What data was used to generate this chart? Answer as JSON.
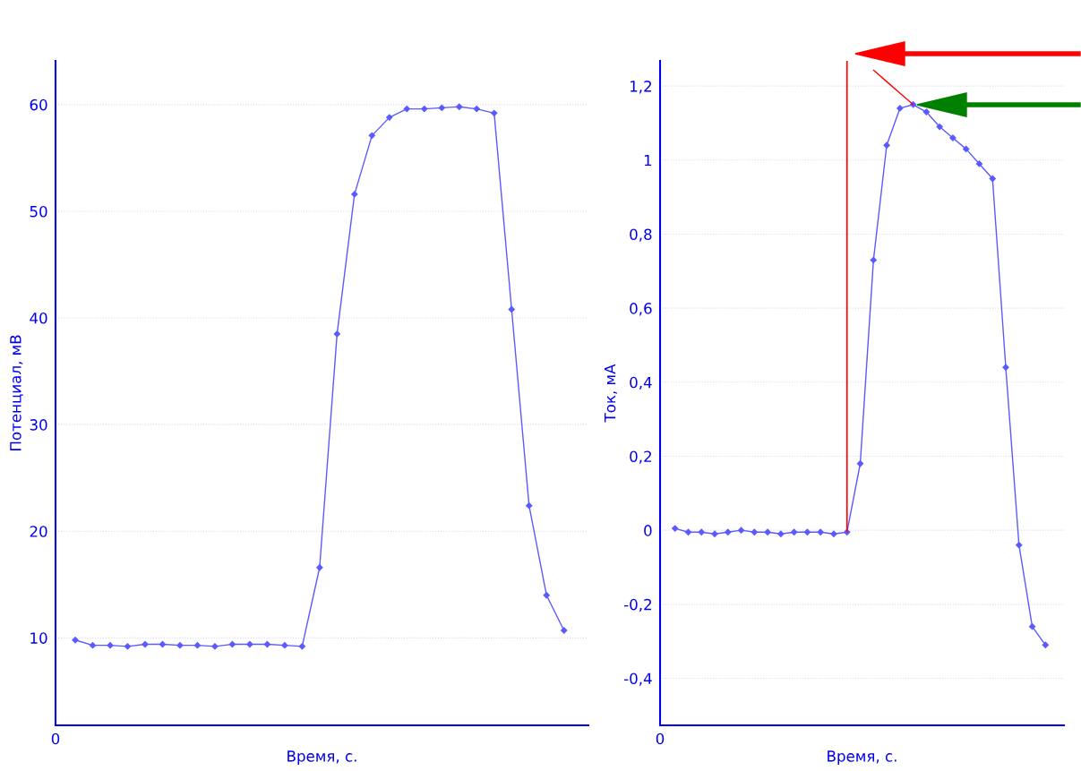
{
  "chart_data": [
    {
      "type": "line",
      "xlabel": "Время, с.",
      "ylabel": "Потенциал, мВ",
      "annotations": [
        "0"
      ],
      "categories": [
        null,
        null,
        null,
        null,
        null,
        null,
        null,
        null,
        null,
        null,
        null,
        null,
        null,
        null,
        null,
        null,
        null,
        null,
        null,
        null,
        null,
        null,
        null,
        null,
        null,
        null,
        null,
        null,
        null
      ],
      "series": [
        {
          "color": "#5a5aff",
          "values": [
            9.8,
            9.3,
            9.3,
            9.2,
            9.4,
            9.4,
            9.3,
            9.3,
            9.2,
            9.4,
            9.4,
            9.4,
            9.3,
            9.2,
            16.6,
            38.5,
            51.6,
            57.1,
            58.8,
            59.6,
            59.6,
            59.7,
            59.8,
            59.6,
            59.2,
            40.8,
            22.4,
            14.0,
            10.7
          ]
        }
      ],
      "ylim": [
        1.8,
        64.1
      ],
      "yticks": [
        10,
        20,
        30,
        40,
        50,
        60
      ],
      "grid": "y",
      "marker": "diamond",
      "line_style": "solid"
    },
    {
      "type": "line",
      "xlabel": "Время, с.",
      "ylabel": "Ток, мА",
      "annotations": [
        "0"
      ],
      "categories": [
        null,
        null,
        null,
        null,
        null,
        null,
        null,
        null,
        null,
        null,
        null,
        null,
        null,
        null,
        null,
        null,
        null,
        null,
        null,
        null,
        null,
        null,
        null,
        null,
        null,
        null,
        null,
        null,
        null
      ],
      "series": [
        {
          "color": "#5a5aff",
          "values": [
            0.005,
            -0.005,
            -0.005,
            -0.01,
            -0.005,
            0,
            -0.005,
            -0.005,
            -0.01,
            -0.005,
            -0.005,
            -0.005,
            -0.01,
            -0.005,
            0.18,
            0.73,
            1.04,
            1.14,
            1.15,
            1.13,
            1.09,
            1.06,
            1.03,
            0.99,
            0.95,
            0.44,
            -0.04,
            -0.26,
            -0.31
          ]
        },
        {
          "type": "line",
          "color": "#ff0000",
          "marker": "none",
          "values": [
            null,
            null,
            null,
            null,
            null,
            null,
            null,
            null,
            null,
            null,
            null,
            null,
            null,
            null,
            null,
            1.243,
            1.212,
            1.181,
            1.15,
            null,
            null,
            null,
            null,
            null,
            null,
            null,
            null,
            null,
            null
          ]
        }
      ],
      "ylim": [
        -0.527,
        1.268
      ],
      "yticks": [
        {
          "value": -0.4,
          "label": "-0,4"
        },
        {
          "value": -0.2,
          "label": "-0,2"
        },
        0,
        {
          "value": 0.2,
          "label": "0,2"
        },
        {
          "value": 0.4,
          "label": "0,4"
        },
        {
          "value": 0.6,
          "label": "0,6"
        },
        {
          "value": 0.8,
          "label": "0,8"
        },
        1,
        {
          "value": 1.2,
          "label": "1,2"
        }
      ],
      "grid": "y",
      "marker": "diamond",
      "line_style": "solid"
    }
  ]
}
